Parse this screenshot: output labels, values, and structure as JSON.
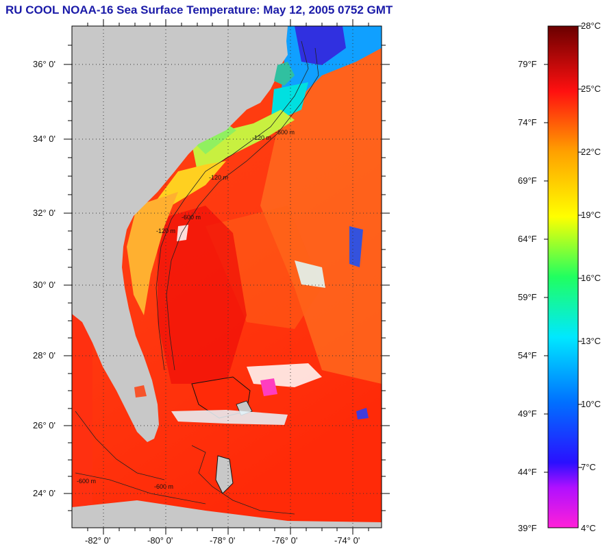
{
  "title": "RU COOL  NOAA-16  Sea Surface Temperature:  May 12, 2005 0752 GMT",
  "map": {
    "lat_labels": [
      "36° 0'",
      "34° 0'",
      "32° 0'",
      "30° 0'",
      "28° 0'",
      "26° 0'",
      "24° 0'"
    ],
    "lon_labels": [
      "-82° 0'",
      "-80° 0'",
      "-78° 0'",
      "-76° 0'",
      "-74° 0'"
    ],
    "isobath_labels": [
      "-120 m",
      "-600 m",
      "-120 m",
      "-600 m",
      "-120 m",
      "-600 m",
      "-600 m"
    ],
    "colors": {
      "land": "#c8c8c8",
      "grid": "#333333"
    }
  },
  "colorbar": {
    "fahrenheit_labels": [
      "79°F",
      "74°F",
      "69°F",
      "64°F",
      "59°F",
      "54°F",
      "49°F",
      "44°F",
      "39°F"
    ],
    "celsius_labels": [
      "28°C",
      "25°C",
      "22°C",
      "19°C",
      "16°C",
      "13°C",
      "10°C",
      "7°C",
      "4°C"
    ],
    "colors": [
      "#ff20d8",
      "#3a10ff",
      "#0060ff",
      "#00e0ff",
      "#20ff80",
      "#ffff00",
      "#ffa000",
      "#ff1010",
      "#a00000",
      "#7a0000"
    ]
  }
}
